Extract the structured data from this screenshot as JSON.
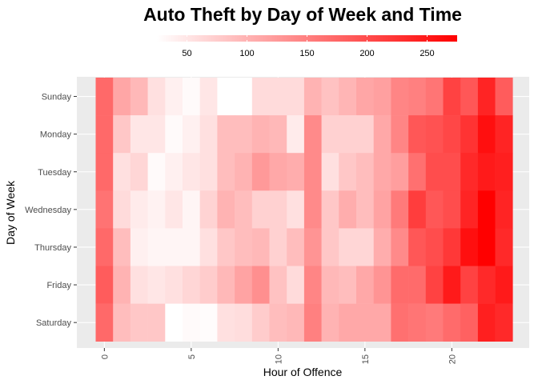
{
  "chart_data": {
    "type": "heatmap",
    "title": "Auto Theft by Day of Week and Time",
    "xlabel": "Hour of Offence",
    "ylabel": "Day of Week",
    "x": [
      0,
      1,
      2,
      3,
      4,
      5,
      6,
      7,
      8,
      9,
      10,
      11,
      12,
      13,
      14,
      15,
      16,
      17,
      18,
      19,
      20,
      21,
      22,
      23
    ],
    "x_ticks": [
      "0",
      "5",
      "10",
      "15",
      "20"
    ],
    "x_tick_values": [
      0,
      5,
      10,
      15,
      20
    ],
    "days": [
      "Sunday",
      "Monday",
      "Tuesday",
      "Wednesday",
      "Thursday",
      "Friday",
      "Saturday"
    ],
    "legend": {
      "position": "top",
      "min": 25,
      "max": 275,
      "ticks": [
        "50",
        "100",
        "150",
        "200",
        "250"
      ],
      "tick_values": [
        50,
        100,
        150,
        200,
        250
      ],
      "low_color": "#ffffff",
      "high_color": "#ff0000"
    },
    "grid": true,
    "panel_color": "#ebebeb",
    "values": {
      "Sunday": [
        172,
        112,
        95,
        55,
        40,
        30,
        50,
        25,
        25,
        60,
        60,
        60,
        100,
        85,
        98,
        112,
        118,
        145,
        150,
        160,
        210,
        190,
        240,
        185
      ],
      "Monday": [
        172,
        80,
        50,
        50,
        30,
        40,
        55,
        90,
        90,
        100,
        95,
        45,
        140,
        70,
        70,
        70,
        110,
        145,
        190,
        195,
        205,
        225,
        260,
        240
      ],
      "Tuesday": [
        172,
        55,
        65,
        30,
        40,
        50,
        55,
        90,
        100,
        125,
        110,
        105,
        140,
        55,
        80,
        90,
        110,
        120,
        165,
        200,
        200,
        235,
        250,
        245
      ],
      "Wednesday": [
        162,
        60,
        45,
        38,
        50,
        35,
        68,
        100,
        90,
        70,
        70,
        55,
        140,
        80,
        105,
        90,
        115,
        155,
        215,
        190,
        200,
        240,
        275,
        240
      ],
      "Thursday": [
        172,
        90,
        40,
        35,
        35,
        35,
        55,
        80,
        90,
        95,
        70,
        90,
        130,
        80,
        65,
        65,
        105,
        140,
        190,
        200,
        220,
        260,
        275,
        235
      ],
      "Friday": [
        185,
        100,
        55,
        50,
        55,
        65,
        75,
        95,
        115,
        135,
        85,
        60,
        145,
        95,
        90,
        110,
        130,
        170,
        170,
        210,
        250,
        210,
        235,
        250
      ],
      "Saturday": [
        172,
        90,
        80,
        80,
        25,
        30,
        28,
        55,
        58,
        75,
        90,
        95,
        150,
        100,
        110,
        110,
        110,
        165,
        160,
        155,
        170,
        180,
        245,
        235
      ]
    }
  }
}
